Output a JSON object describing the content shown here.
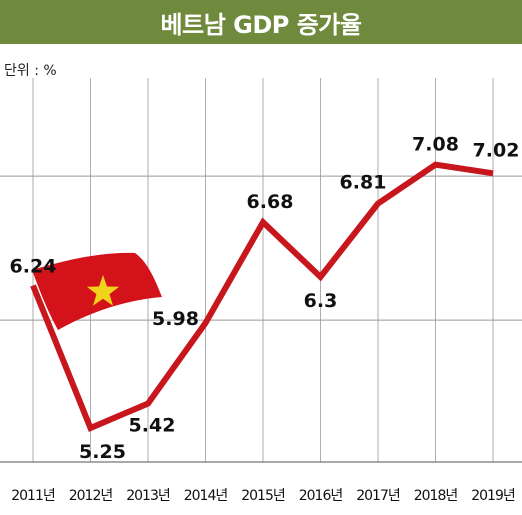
{
  "header": {
    "title": "베트남 GDP 증가율"
  },
  "unit_label": "단위 : %",
  "colors": {
    "title_bg": "#6f8a3c",
    "line": "#c8161d",
    "grid": "#9a9a9a",
    "flag_red": "#d4121a",
    "flag_star": "#f2d31b"
  },
  "decorations": {
    "flag_icon": "vietnam-flag-icon"
  },
  "chart_data": {
    "type": "line",
    "title": "베트남 GDP 증가율",
    "ylabel": "단위 : %",
    "categories": [
      "2011년",
      "2012년",
      "2013년",
      "2014년",
      "2015년",
      "2016년",
      "2017년",
      "2018년",
      "2019년"
    ],
    "values": [
      6.24,
      5.25,
      5.42,
      5.98,
      6.68,
      6.3,
      6.81,
      7.08,
      7.02
    ],
    "value_labels": [
      "6.24",
      "5.25",
      "5.42",
      "5.98",
      "6.68",
      "6.3",
      "6.81",
      "7.08",
      "7.02"
    ],
    "ylim": [
      5.0,
      7.3
    ],
    "grid": true,
    "legend": "none"
  }
}
